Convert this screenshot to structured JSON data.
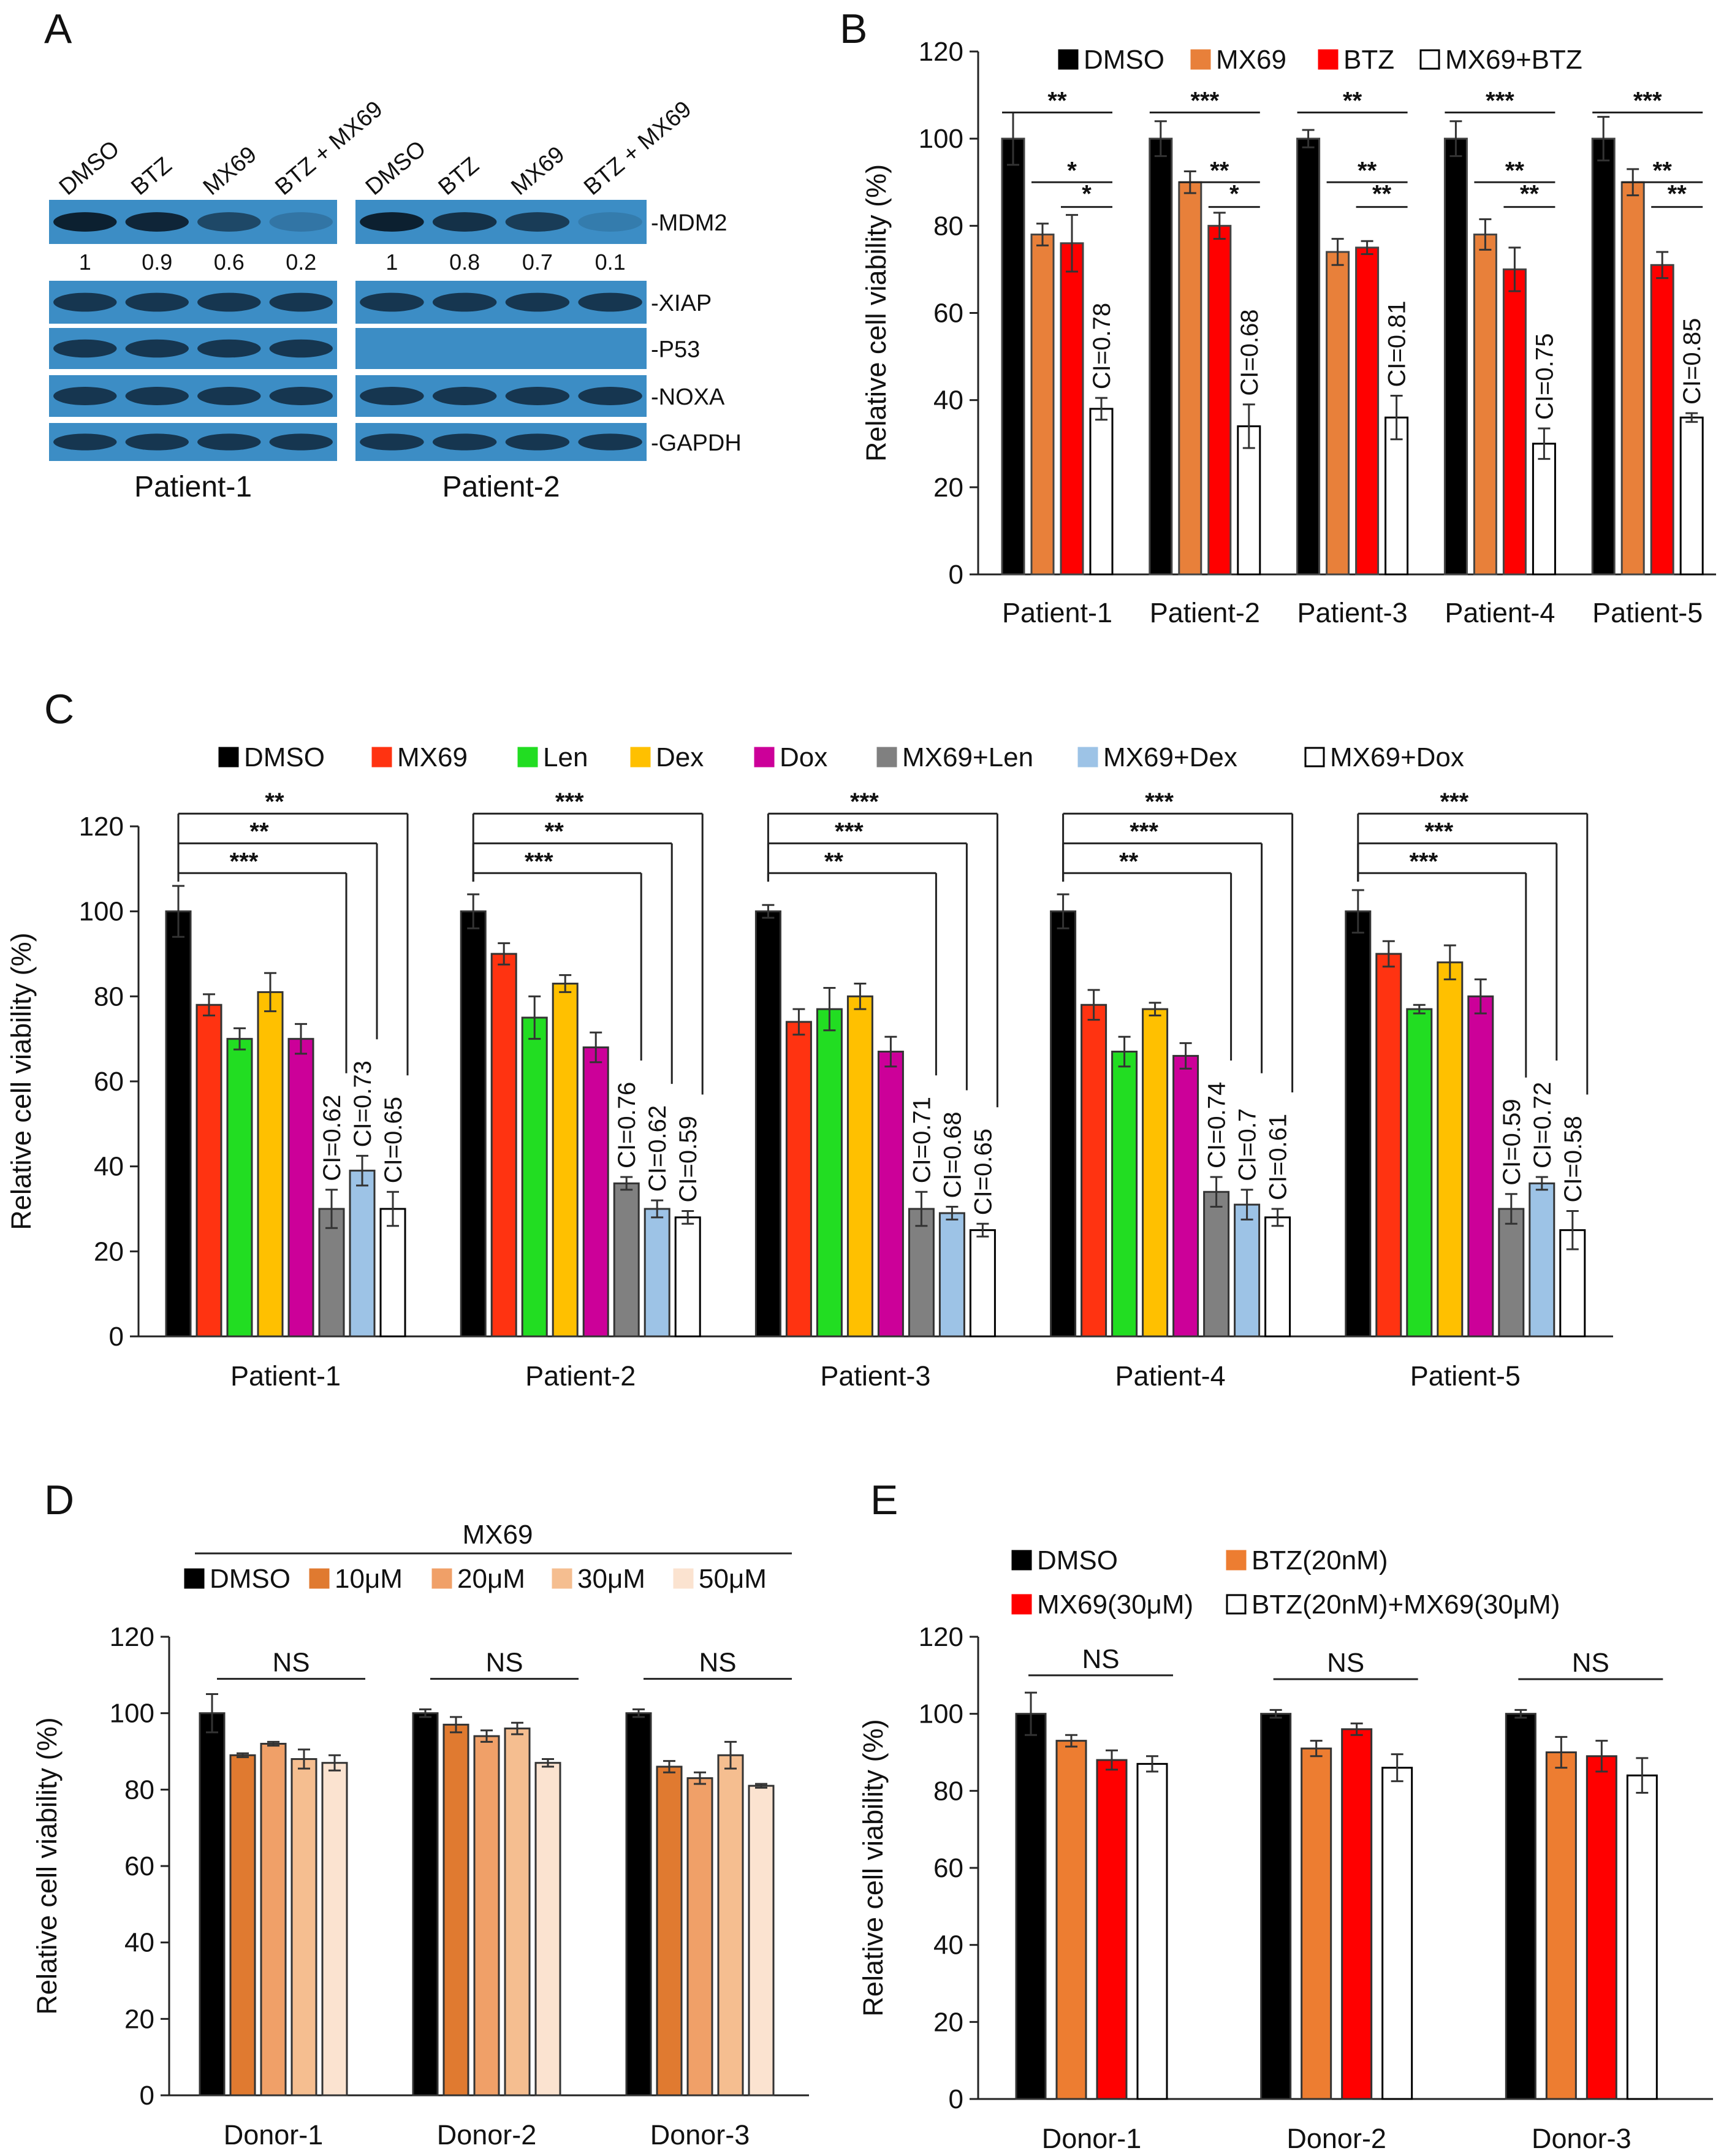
{
  "chart_data": [
    {
      "panel": "A",
      "type": "table",
      "title": "Western blot",
      "lane_labels": [
        "DMSO",
        "BTZ",
        "MX69",
        "BTZ + MX69"
      ],
      "bands": [
        "-MDM2",
        "-XIAP",
        "-P53",
        "-NOXA",
        "-GAPDH"
      ],
      "patients": [
        {
          "name": "Patient-1",
          "mdm2_quant": [
            "1",
            "0.9",
            "0.6",
            "0.2"
          ],
          "p53_visible": true
        },
        {
          "name": "Patient-2",
          "mdm2_quant": [
            "1",
            "0.8",
            "0.7",
            "0.1"
          ],
          "p53_visible": false
        }
      ]
    },
    {
      "panel": "B",
      "type": "bar",
      "ylabel": "Relative cell viability (%)",
      "ylim": [
        0,
        120
      ],
      "yticks": [
        0,
        20,
        40,
        60,
        80,
        100,
        120
      ],
      "categories": [
        "Patient-1",
        "Patient-2",
        "Patient-3",
        "Patient-4",
        "Patient-5"
      ],
      "legend_position": "top",
      "series": [
        {
          "name": "DMSO",
          "color": "#000000",
          "values": [
            100,
            100,
            100,
            100,
            100
          ],
          "errors": [
            6,
            4,
            2,
            4,
            5
          ]
        },
        {
          "name": "MX69",
          "color": "#E8803A",
          "values": [
            78,
            90,
            74,
            78,
            90
          ],
          "errors": [
            2.5,
            2.5,
            3,
            3.5,
            3
          ]
        },
        {
          "name": "BTZ",
          "color": "#FF0000",
          "values": [
            76,
            80,
            75,
            70,
            71
          ],
          "errors": [
            6.5,
            3,
            1.5,
            5,
            3
          ]
        },
        {
          "name": "MX69+BTZ",
          "color": "#FFFFFF",
          "values": [
            38,
            34,
            36,
            30,
            36
          ],
          "errors": [
            2.5,
            5,
            5,
            3.5,
            1
          ]
        }
      ],
      "ci_labels": [
        "CI=0.78",
        "CI=0.68",
        "CI=0.81",
        "CI=0.75",
        "CI=0.85"
      ],
      "significance": [
        [
          "**",
          "*",
          "*"
        ],
        [
          "***",
          "**",
          "*"
        ],
        [
          "**",
          "**",
          "**"
        ],
        [
          "***",
          "**",
          "**"
        ],
        [
          "***",
          "**",
          "**"
        ]
      ]
    },
    {
      "panel": "C",
      "type": "bar",
      "ylabel": "Relative cell viability (%)",
      "ylim": [
        0,
        120
      ],
      "yticks": [
        0,
        20,
        40,
        60,
        80,
        100,
        120
      ],
      "categories": [
        "Patient-1",
        "Patient-2",
        "Patient-3",
        "Patient-4",
        "Patient-5"
      ],
      "legend_position": "top",
      "series": [
        {
          "name": "DMSO",
          "color": "#000000",
          "values": [
            100,
            100,
            100,
            100,
            100
          ],
          "errors": [
            6,
            4,
            1.5,
            4,
            5
          ]
        },
        {
          "name": "MX69",
          "color": "#FF3311",
          "values": [
            78,
            90,
            74,
            78,
            90
          ],
          "errors": [
            2.5,
            2.5,
            3,
            3.5,
            3
          ]
        },
        {
          "name": "Len",
          "color": "#22DD22",
          "values": [
            70,
            75,
            77,
            67,
            77
          ],
          "errors": [
            2.5,
            5,
            5,
            3.5,
            1
          ]
        },
        {
          "name": "Dex",
          "color": "#FFC000",
          "values": [
            81,
            83,
            80,
            77,
            88
          ],
          "errors": [
            4.5,
            2,
            3,
            1.5,
            4
          ]
        },
        {
          "name": "Dox",
          "color": "#CC0099",
          "values": [
            70,
            68,
            67,
            66,
            80
          ],
          "errors": [
            3.5,
            3.5,
            3.5,
            3,
            4
          ]
        },
        {
          "name": "MX69+Len",
          "color": "#808080",
          "values": [
            30,
            36,
            30,
            34,
            30
          ],
          "errors": [
            4.5,
            1.5,
            4,
            3.5,
            3.5
          ]
        },
        {
          "name": "MX69+Dex",
          "color": "#9DC3E6",
          "values": [
            39,
            30,
            29,
            31,
            36
          ],
          "errors": [
            3.5,
            2,
            1.5,
            3.5,
            1.5
          ]
        },
        {
          "name": "MX69+Dox",
          "color": "#FFFFFF",
          "values": [
            30,
            28,
            25,
            28,
            25
          ],
          "errors": [
            4,
            1.5,
            1.5,
            2,
            4.5
          ]
        }
      ],
      "ci_labels": [
        [
          "CI=0.62",
          "CI=0.73",
          "CI=0.65"
        ],
        [
          "CI=0.76",
          "CI=0.62",
          "CI=0.59"
        ],
        [
          "CI=0.71",
          "CI=0.68",
          "CI=0.65"
        ],
        [
          "CI=0.74",
          "CI=0.7",
          "CI=0.61"
        ],
        [
          "CI=0.59",
          "CI=0.72",
          "CI=0.58"
        ]
      ],
      "significance": [
        [
          "***",
          "**",
          "**"
        ],
        [
          "***",
          "**",
          "***"
        ],
        [
          "**",
          "***",
          "***"
        ],
        [
          "**",
          "***",
          "***"
        ],
        [
          "***",
          "***",
          "***"
        ]
      ]
    },
    {
      "panel": "D",
      "type": "bar",
      "ylabel": "Relative cell viability (%)",
      "ylim": [
        0,
        120
      ],
      "yticks": [
        0,
        20,
        40,
        60,
        80,
        100,
        120
      ],
      "categories": [
        "Donor-1",
        "Donor-2",
        "Donor-3"
      ],
      "legend_title": "MX69",
      "legend_position": "top",
      "series": [
        {
          "name": "DMSO",
          "color": "#000000",
          "values": [
            100,
            100,
            100
          ],
          "errors": [
            5,
            1,
            1
          ]
        },
        {
          "name": "10μM",
          "color": "#E07A30",
          "values": [
            89,
            97,
            86
          ],
          "errors": [
            0.5,
            2,
            1.5
          ]
        },
        {
          "name": "20μM",
          "color": "#F0A068",
          "values": [
            92,
            94,
            83
          ],
          "errors": [
            0.5,
            1.5,
            1.5
          ]
        },
        {
          "name": "30μM",
          "color": "#F5BE90",
          "values": [
            88,
            96,
            89
          ],
          "errors": [
            2.5,
            1.5,
            3.5
          ]
        },
        {
          "name": "50μM",
          "color": "#FBE3D0",
          "values": [
            87,
            87,
            81
          ],
          "errors": [
            2,
            1,
            0.5
          ]
        }
      ],
      "significance": [
        "NS",
        "NS",
        "NS"
      ]
    },
    {
      "panel": "E",
      "type": "bar",
      "ylabel": "Relative cell viability (%)",
      "ylim": [
        0,
        120
      ],
      "yticks": [
        0,
        20,
        40,
        60,
        80,
        100,
        120
      ],
      "categories": [
        "Donor-1",
        "Donor-2",
        "Donor-3"
      ],
      "legend_position": "top",
      "series": [
        {
          "name": "DMSO",
          "color": "#000000",
          "values": [
            100,
            100,
            100
          ],
          "errors": [
            5.5,
            1,
            1
          ]
        },
        {
          "name": "BTZ(20nM)",
          "color": "#ED7D31",
          "values": [
            93,
            91,
            90
          ],
          "errors": [
            1.5,
            2,
            4
          ]
        },
        {
          "name": "MX69(30μM)",
          "color": "#FF0000",
          "values": [
            88,
            96,
            89
          ],
          "errors": [
            2.5,
            1.5,
            4
          ]
        },
        {
          "name": "BTZ(20nM)+MX69(30μM)",
          "color": "#FFFFFF",
          "values": [
            87,
            86,
            84
          ],
          "errors": [
            2,
            3.5,
            4.5
          ]
        }
      ],
      "significance": [
        "NS",
        "NS",
        "NS"
      ]
    }
  ]
}
